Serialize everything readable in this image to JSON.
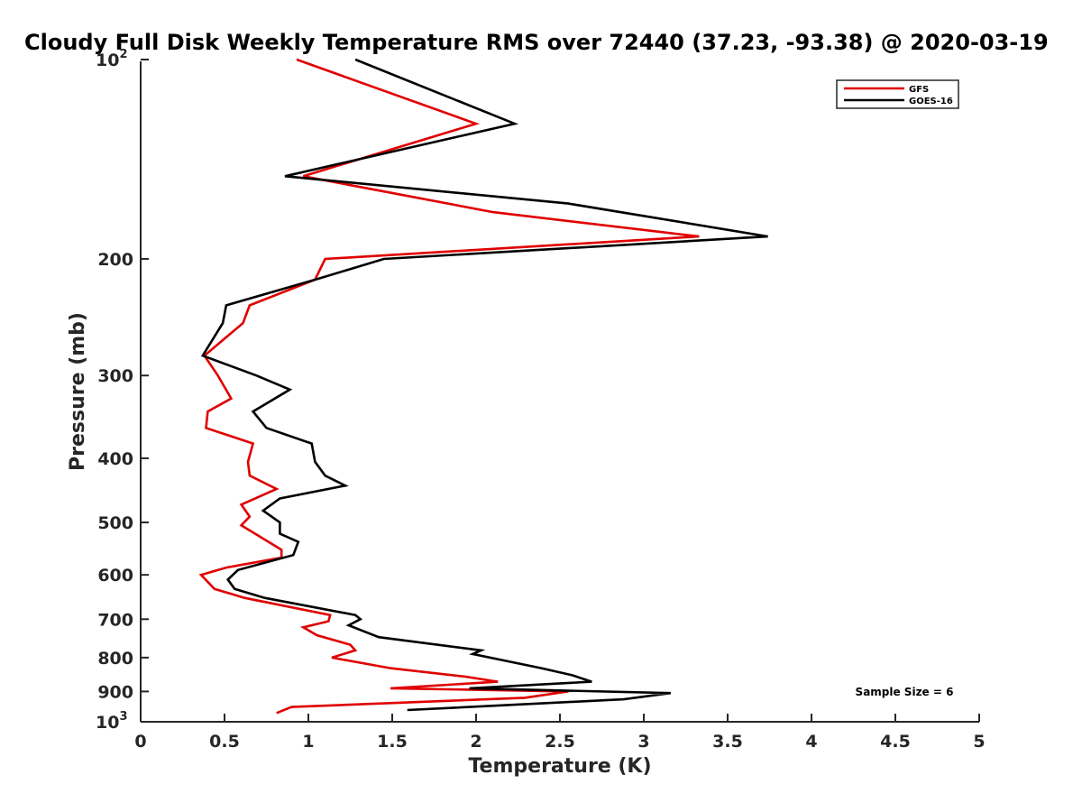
{
  "chart_data": {
    "type": "line",
    "title": "Cloudy Full Disk Weekly Temperature RMS over 72440 (37.23, -93.38) @ 2020-03-19",
    "xlabel": "Temperature (K)",
    "ylabel": "Pressure (mb)",
    "xlim": [
      0,
      5
    ],
    "ylim": [
      100,
      1000
    ],
    "y_scale": "log",
    "y_reversed": true,
    "x_ticks": [
      "0",
      "0.5",
      "1",
      "1.5",
      "2",
      "2.5",
      "3",
      "3.5",
      "4",
      "4.5",
      "5"
    ],
    "y_ticks": [
      {
        "value": 100,
        "base": "10",
        "exp": "2"
      },
      {
        "value": 200,
        "label": "200"
      },
      {
        "value": 300,
        "label": "300"
      },
      {
        "value": 400,
        "label": "400"
      },
      {
        "value": 500,
        "label": "500"
      },
      {
        "value": 600,
        "label": "600"
      },
      {
        "value": 700,
        "label": "700"
      },
      {
        "value": 800,
        "label": "800"
      },
      {
        "value": 900,
        "label": "900"
      },
      {
        "value": 1000,
        "base": "10",
        "exp": "3"
      }
    ],
    "grid": false,
    "legend_position": "top-right",
    "annotation": "Sample Size = 6",
    "series": [
      {
        "name": "GFS",
        "color": "#e00000",
        "points": [
          [
            0.93,
            100
          ],
          [
            2.0,
            125
          ],
          [
            0.97,
            150
          ],
          [
            2.1,
            170
          ],
          [
            3.33,
            185
          ],
          [
            1.1,
            200
          ],
          [
            1.04,
            215
          ],
          [
            0.65,
            235
          ],
          [
            0.61,
            250
          ],
          [
            0.38,
            280
          ],
          [
            0.46,
            300
          ],
          [
            0.54,
            325
          ],
          [
            0.4,
            340
          ],
          [
            0.39,
            360
          ],
          [
            0.67,
            380
          ],
          [
            0.64,
            405
          ],
          [
            0.65,
            425
          ],
          [
            0.81,
            445
          ],
          [
            0.6,
            470
          ],
          [
            0.65,
            490
          ],
          [
            0.6,
            505
          ],
          [
            0.84,
            550
          ],
          [
            0.84,
            565
          ],
          [
            0.51,
            585
          ],
          [
            0.36,
            600
          ],
          [
            0.44,
            630
          ],
          [
            0.62,
            650
          ],
          [
            1.13,
            690
          ],
          [
            1.12,
            705
          ],
          [
            0.97,
            720
          ],
          [
            1.05,
            740
          ],
          [
            1.25,
            765
          ],
          [
            1.28,
            780
          ],
          [
            1.14,
            800
          ],
          [
            1.49,
            830
          ],
          [
            1.94,
            855
          ],
          [
            2.13,
            870
          ],
          [
            1.49,
            890
          ],
          [
            2.55,
            900
          ],
          [
            2.29,
            920
          ],
          [
            0.9,
            950
          ],
          [
            0.81,
            970
          ]
        ]
      },
      {
        "name": "GOES-16",
        "color": "#000000",
        "points": [
          [
            1.28,
            100
          ],
          [
            2.23,
            125
          ],
          [
            0.86,
            150
          ],
          [
            2.55,
            165
          ],
          [
            3.74,
            185
          ],
          [
            1.45,
            200
          ],
          [
            1.04,
            215
          ],
          [
            0.51,
            235
          ],
          [
            0.49,
            250
          ],
          [
            0.37,
            280
          ],
          [
            0.69,
            300
          ],
          [
            0.89,
            315
          ],
          [
            0.67,
            340
          ],
          [
            0.75,
            360
          ],
          [
            1.02,
            380
          ],
          [
            1.04,
            405
          ],
          [
            1.1,
            425
          ],
          [
            1.22,
            440
          ],
          [
            0.83,
            460
          ],
          [
            0.73,
            480
          ],
          [
            0.83,
            500
          ],
          [
            0.83,
            520
          ],
          [
            0.94,
            535
          ],
          [
            0.91,
            560
          ],
          [
            0.58,
            590
          ],
          [
            0.52,
            610
          ],
          [
            0.56,
            630
          ],
          [
            0.74,
            650
          ],
          [
            1.28,
            690
          ],
          [
            1.31,
            700
          ],
          [
            1.24,
            715
          ],
          [
            1.42,
            745
          ],
          [
            2.03,
            780
          ],
          [
            1.98,
            790
          ],
          [
            2.39,
            830
          ],
          [
            2.57,
            850
          ],
          [
            2.69,
            870
          ],
          [
            1.96,
            890
          ],
          [
            3.16,
            905
          ],
          [
            2.88,
            925
          ],
          [
            1.59,
            960
          ]
        ]
      }
    ]
  }
}
